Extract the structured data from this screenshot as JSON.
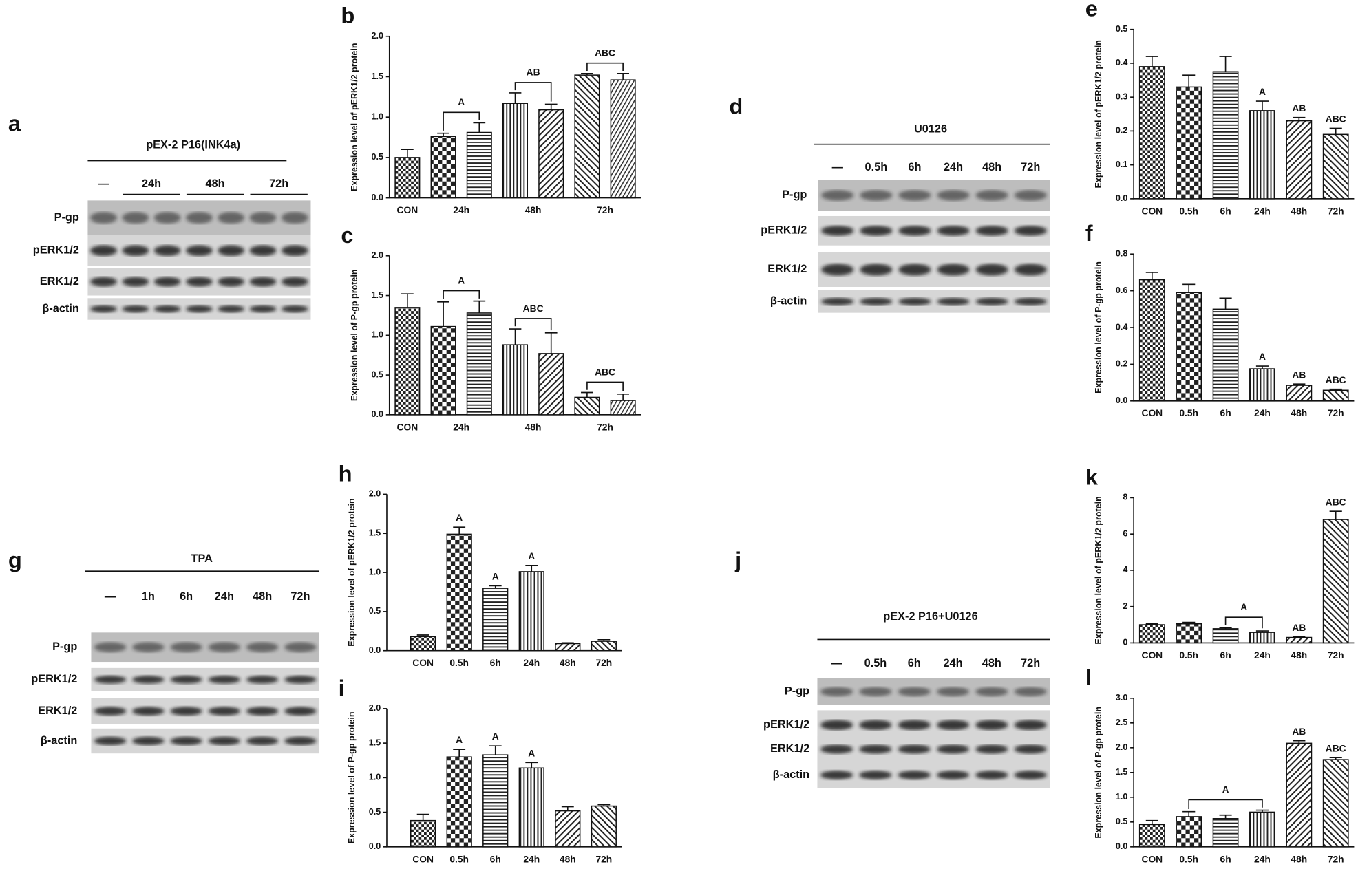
{
  "chart_data": [
    {
      "type": "bar",
      "panel": "b",
      "y_label": "Expression level of pERK1/2 protein",
      "categories": [
        "CON",
        "24h",
        null,
        "48h",
        null,
        "72h",
        null
      ],
      "values": [
        0.5,
        0.76,
        0.81,
        1.17,
        1.09,
        1.52,
        1.46
      ],
      "errors": [
        0.1,
        0.04,
        0.12,
        0.13,
        0.07,
        0.02,
        0.08
      ],
      "ylim": [
        0,
        2
      ],
      "yticks": [
        {
          "value": 0,
          "label": "0.0"
        },
        0.5,
        {
          "value": 1,
          "label": "1.0"
        },
        1.5,
        {
          "value": 2,
          "label": "2.0"
        }
      ],
      "brackets": [
        {
          "text": "A",
          "span": [
            1,
            2
          ]
        },
        {
          "text": "AB",
          "span": [
            3,
            4
          ]
        },
        {
          "text": "ABC",
          "span": [
            5,
            6
          ]
        }
      ]
    },
    {
      "type": "bar",
      "panel": "c",
      "y_label": "Expression level of P-gp protein",
      "categories": [
        "CON",
        "24h",
        null,
        "48h",
        null,
        "72h",
        null
      ],
      "values": [
        1.35,
        1.11,
        1.28,
        0.88,
        0.77,
        0.22,
        0.18
      ],
      "errors": [
        0.17,
        0.31,
        0.15,
        0.2,
        0.26,
        0.06,
        0.08
      ],
      "ylim": [
        0,
        2
      ],
      "yticks": [
        {
          "value": 0,
          "label": "0.0"
        },
        0.5,
        {
          "value": 1,
          "label": "1.0"
        },
        1.5,
        {
          "value": 2,
          "label": "2.0"
        }
      ],
      "brackets": [
        {
          "text": "A",
          "span": [
            1,
            2
          ]
        },
        {
          "text": "ABC",
          "span": [
            3,
            4
          ]
        },
        {
          "text": "ABC",
          "span": [
            5,
            6
          ]
        }
      ]
    },
    {
      "type": "bar",
      "panel": "e",
      "y_label": "Expression level of pERK1/2 protein",
      "categories": [
        "CON",
        "0.5h",
        "6h",
        "24h",
        "48h",
        "72h"
      ],
      "values": [
        0.39,
        0.33,
        0.375,
        0.26,
        0.23,
        0.19
      ],
      "errors": [
        0.03,
        0.035,
        0.045,
        0.028,
        0.01,
        0.018
      ],
      "ylim": [
        0,
        0.5
      ],
      "yticks": [
        {
          "value": 0,
          "label": "0.0"
        },
        0.1,
        0.2,
        0.3,
        0.4,
        0.5
      ],
      "bar_labels": [
        null,
        null,
        null,
        "A",
        "AB",
        "ABC"
      ]
    },
    {
      "type": "bar",
      "panel": "f",
      "y_label": "Expression level of P-gp protein",
      "categories": [
        "CON",
        "0.5h",
        "6h",
        "24h",
        "48h",
        "72h"
      ],
      "values": [
        0.66,
        0.59,
        0.5,
        0.175,
        0.085,
        0.058
      ],
      "errors": [
        0.04,
        0.045,
        0.06,
        0.015,
        0.007,
        0.006
      ],
      "ylim": [
        0,
        0.8
      ],
      "yticks": [
        {
          "value": 0,
          "label": "0.0"
        },
        0.2,
        0.4,
        0.6,
        0.8
      ],
      "bar_labels": [
        null,
        null,
        null,
        "A",
        "AB",
        "ABC"
      ]
    },
    {
      "type": "bar",
      "panel": "h",
      "y_label": "Expression level of pERK1/2 protein",
      "categories": [
        "CON",
        "0.5h",
        "6h",
        "24h",
        "48h",
        "72h"
      ],
      "values": [
        0.18,
        1.49,
        0.8,
        1.01,
        0.09,
        0.12
      ],
      "errors": [
        0.02,
        0.09,
        0.03,
        0.08,
        0.01,
        0.02
      ],
      "ylim": [
        0,
        2
      ],
      "yticks": [
        {
          "value": 0,
          "label": "0.0"
        },
        0.5,
        {
          "value": 1,
          "label": "1.0"
        },
        1.5,
        {
          "value": 2,
          "label": "2.0"
        }
      ],
      "bar_labels": [
        null,
        "A",
        "A",
        "A",
        null,
        null
      ]
    },
    {
      "type": "bar",
      "panel": "i",
      "y_label": "Expression level of P-gp protein",
      "categories": [
        "CON",
        "0.5h",
        "6h",
        "24h",
        "48h",
        "72h"
      ],
      "values": [
        0.38,
        1.3,
        1.33,
        1.14,
        0.52,
        0.59
      ],
      "errors": [
        0.09,
        0.11,
        0.13,
        0.08,
        0.06,
        0.02
      ],
      "ylim": [
        0,
        2
      ],
      "yticks": [
        {
          "value": 0,
          "label": "0.0"
        },
        0.5,
        {
          "value": 1,
          "label": "1.0"
        },
        1.5,
        {
          "value": 2,
          "label": "2.0"
        }
      ],
      "bar_labels": [
        null,
        "A",
        "A",
        "A",
        null,
        null
      ]
    },
    {
      "type": "bar",
      "panel": "k",
      "y_label": "Expression level of pERK1/2 protein",
      "categories": [
        "CON",
        "0.5h",
        "6h",
        "24h",
        "48h",
        "72h"
      ],
      "values": [
        1.0,
        1.05,
        0.78,
        0.58,
        0.3,
        6.8
      ],
      "errors": [
        0.05,
        0.08,
        0.06,
        0.08,
        0.03,
        0.45
      ],
      "ylim": [
        0,
        8
      ],
      "yticks": [
        0,
        2,
        4,
        6,
        8
      ],
      "bar_labels": [
        null,
        null,
        null,
        null,
        "AB",
        "ABC"
      ],
      "brackets": [
        {
          "text": "A",
          "span": [
            2,
            3
          ]
        }
      ]
    },
    {
      "type": "bar",
      "panel": "l",
      "y_label": "Expression level of P-gp protein",
      "categories": [
        "CON",
        "0.5h",
        "6h",
        "24h",
        "48h",
        "72h"
      ],
      "values": [
        0.45,
        0.61,
        0.57,
        0.7,
        2.09,
        1.76
      ],
      "errors": [
        0.08,
        0.1,
        0.07,
        0.04,
        0.05,
        0.04
      ],
      "ylim": [
        0,
        3
      ],
      "yticks": [
        {
          "value": 0,
          "label": "0.0"
        },
        0.5,
        {
          "value": 1,
          "label": "1.0"
        },
        1.5,
        {
          "value": 2,
          "label": "2.0"
        },
        2.5,
        {
          "value": 3,
          "label": "3.0"
        }
      ],
      "bar_labels": [
        null,
        null,
        null,
        null,
        "AB",
        "ABC"
      ],
      "brackets": [
        {
          "text": "A",
          "span": [
            1,
            3
          ]
        }
      ]
    }
  ],
  "blots": [
    {
      "panel": "a",
      "treatment": "pEX-2 P16(INK4a)",
      "lanes": [
        "—",
        "24h",
        null,
        "48h",
        null,
        "72h",
        null
      ],
      "proteins": [
        "P-gp",
        "pERK1/2",
        "ERK1/2",
        "β-actin"
      ]
    },
    {
      "panel": "d",
      "treatment": "U0126",
      "lanes": [
        "—",
        "0.5h",
        "6h",
        "24h",
        "48h",
        "72h"
      ],
      "proteins": [
        "P-gp",
        "pERK1/2",
        "ERK1/2",
        "β-actin"
      ]
    },
    {
      "panel": "g",
      "treatment": "TPA",
      "lanes": [
        "—",
        "1h",
        "6h",
        "24h",
        "48h",
        "72h"
      ],
      "proteins": [
        "P-gp",
        "pERK1/2",
        "ERK1/2",
        "β-actin"
      ]
    },
    {
      "panel": "j",
      "treatment": "pEX-2 P16+U0126",
      "lanes": [
        "—",
        "0.5h",
        "6h",
        "24h",
        "48h",
        "72h"
      ],
      "proteins": [
        "P-gp",
        "pERK1/2",
        "ERK1/2",
        "β-actin"
      ]
    }
  ]
}
